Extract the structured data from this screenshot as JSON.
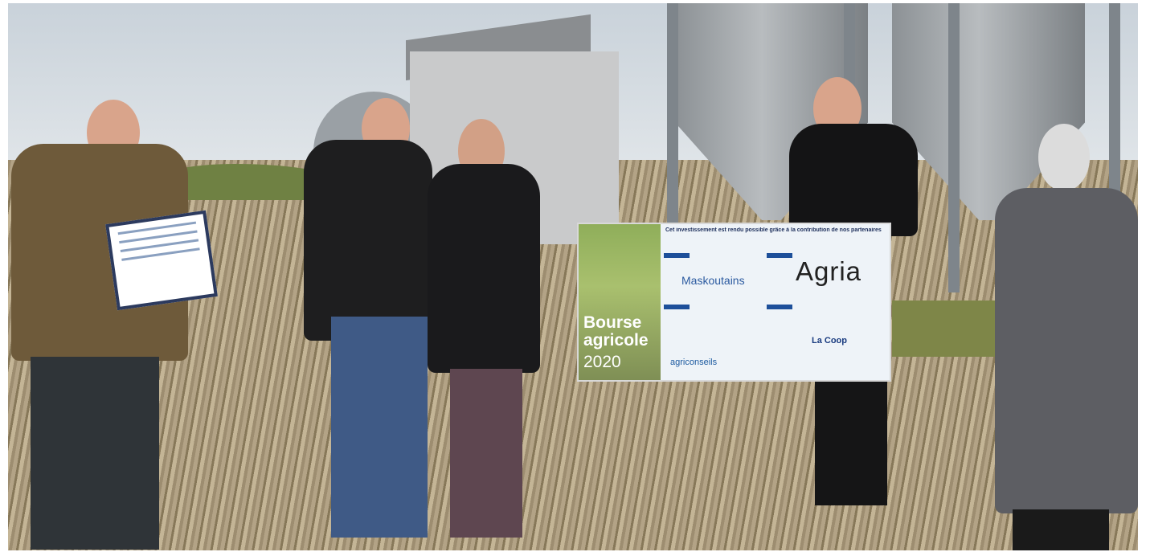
{
  "banner": {
    "title_line1": "Bourse",
    "title_line2": "agricole",
    "year": "2020",
    "header_text": "Cet investissement est rendu possible grâce à la contribution de nos partenaires",
    "logos": {
      "maskoutains": "Maskoutains",
      "agria": "Agria",
      "agriconseils": "agriconseils",
      "lacoop": "La Coop"
    }
  },
  "colors": {
    "sky": "#c9d2da",
    "field": "#a99a7c",
    "banner_blue": "#1d4f9a"
  }
}
